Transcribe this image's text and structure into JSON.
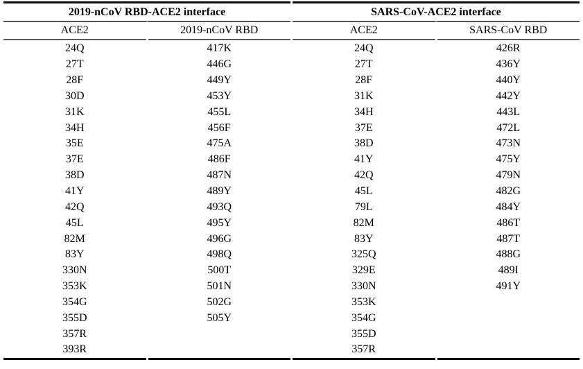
{
  "table": {
    "groups": [
      {
        "title": "2019-nCoV RBD-ACE2 interface",
        "columns": [
          "ACE2",
          "2019-nCoV RBD"
        ]
      },
      {
        "title": "SARS-CoV-ACE2 interface",
        "columns": [
          "ACE2",
          "SARS-CoV RBD"
        ]
      }
    ],
    "residues": {
      "ncov_ace2": [
        "24Q",
        "27T",
        "28F",
        "30D",
        "31K",
        "34H",
        "35E",
        "37E",
        "38D",
        "41Y",
        "42Q",
        "45L",
        "82M",
        "83Y",
        "330N",
        "353K",
        "354G",
        "355D",
        "357R",
        "393R"
      ],
      "ncov_rbd": [
        "417K",
        "446G",
        "449Y",
        "453Y",
        "455L",
        "456F",
        "475A",
        "486F",
        "487N",
        "489Y",
        "493Q",
        "495Y",
        "496G",
        "498Q",
        "500T",
        "501N",
        "502G",
        "505Y"
      ],
      "sars_ace2": [
        "24Q",
        "27T",
        "28F",
        "31K",
        "34H",
        "37E",
        "38D",
        "41Y",
        "42Q",
        "45L",
        "79L",
        "82M",
        "83Y",
        "325Q",
        "329E",
        "330N",
        "353K",
        "354G",
        "355D",
        "357R"
      ],
      "sars_rbd": [
        "426R",
        "436Y",
        "440Y",
        "442Y",
        "443L",
        "472L",
        "473N",
        "475Y",
        "479N",
        "482G",
        "484Y",
        "486T",
        "487T",
        "488G",
        "489I",
        "491Y"
      ]
    },
    "colors": {
      "text": "#000000",
      "rule_heavy": "#0a0a0a",
      "rule_light": "#5a5a5a",
      "background": "#ffffff"
    }
  }
}
